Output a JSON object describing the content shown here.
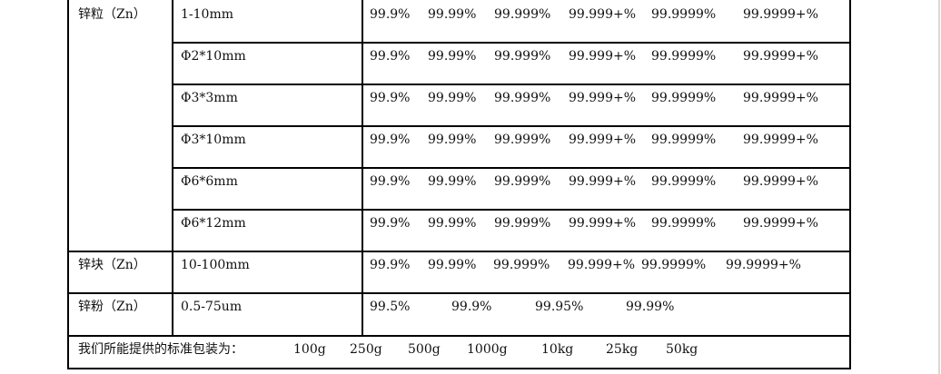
{
  "rows": [
    {
      "product": "锌粒（Zn）",
      "size": "1-10mm",
      "purities": [
        "99.9%",
        "99.99%",
        "99.999%",
        "99.999+%",
        "99.9999%",
        "99.9999+%"
      ]
    },
    {
      "product": "",
      "size": "Φ2*10mm",
      "purities": [
        "99.9%",
        "99.99%",
        "99.999%",
        "99.999+%",
        "99.9999%",
        "99.9999+%"
      ]
    },
    {
      "product": "",
      "size": "Φ3*3mm",
      "purities": [
        "99.9%",
        "99.99%",
        "99.999%",
        "99.999+%",
        "99.9999%",
        "99.9999+%"
      ]
    },
    {
      "product": "",
      "size": "Φ3*10mm",
      "purities": [
        "99.9%",
        "99.99%",
        "99.999%",
        "99.999+%",
        "99.9999%",
        "99.9999+%"
      ]
    },
    {
      "product": "",
      "size": "Φ6*6mm",
      "purities": [
        "99.9%",
        "99.99%",
        "99.999%",
        "99.999+%",
        "99.9999%",
        "99.9999+%"
      ]
    },
    {
      "product": "",
      "size": "Φ6*12mm",
      "purities": [
        "99.9%",
        "99.99%",
        "99.999%",
        "99.999+%",
        "99.9999%",
        "99.9999+%"
      ]
    },
    {
      "product": "锌块（Zn）",
      "size": "10-100mm",
      "purities": [
        "99.9%",
        "99.99%",
        "99.999%",
        "99.999+%",
        "99.9999%",
        "99.9999+%"
      ]
    },
    {
      "product": "锌粉（Zn）",
      "size": "0.5-75um",
      "purities": [
        "99.5%",
        "99.9%",
        "99.95%",
        "99.99%"
      ]
    }
  ],
  "packaging": {
    "label": "我们所能提供的标准包装为：",
    "sizes": [
      "100g",
      "250g",
      "500g",
      "1000g",
      "10kg",
      "25kg",
      "50kg"
    ]
  }
}
